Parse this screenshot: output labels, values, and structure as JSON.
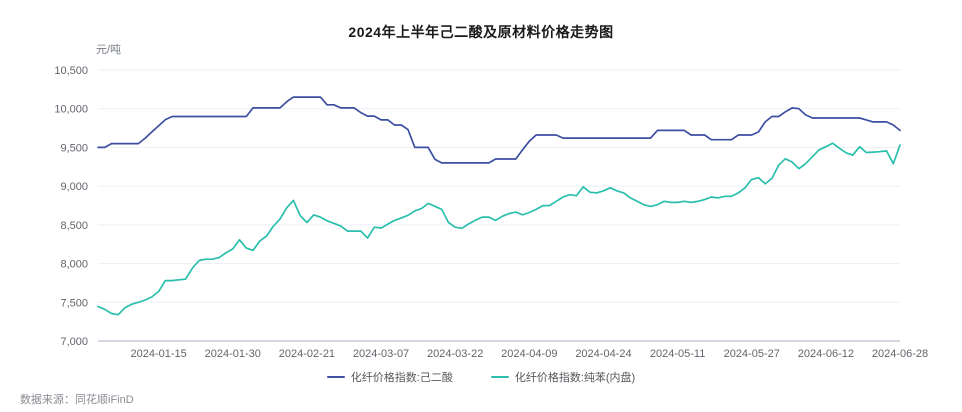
{
  "chart_data": {
    "type": "line",
    "title": "2024年上半年己二酸及原材料价格走势图",
    "ylabel": "元/吨",
    "ylim": [
      7000,
      10500
    ],
    "grid": true,
    "legend_position": "bottom",
    "y_ticks": [
      {
        "value": 10500,
        "label": "10,500"
      },
      {
        "value": 10000,
        "label": "10,000"
      },
      {
        "value": 9500,
        "label": "9,500"
      },
      {
        "value": 9000,
        "label": "9,000"
      },
      {
        "value": 8500,
        "label": "8,500"
      },
      {
        "value": 8000,
        "label": "8,000"
      },
      {
        "value": 7500,
        "label": "7,500"
      },
      {
        "value": 7000,
        "label": "7,000"
      }
    ],
    "x_tick_labels": [
      "2024-01-15",
      "2024-01-30",
      "2024-02-21",
      "2024-03-07",
      "2024-03-22",
      "2024-04-09",
      "2024-04-24",
      "2024-05-11",
      "2024-05-27",
      "2024-06-12",
      "2024-06-28"
    ],
    "x_tick_indices": [
      9,
      20,
      31,
      42,
      53,
      64,
      75,
      86,
      97,
      108,
      119
    ],
    "series": [
      {
        "name": "化纤价格指数:己二酸",
        "color": "#3D4FA1",
        "values": [
          9500,
          9500,
          9550,
          9550,
          9550,
          9550,
          9550,
          9620,
          9700,
          9780,
          9860,
          9900,
          9900,
          9900,
          9900,
          9900,
          9900,
          9900,
          9900,
          9900,
          9900,
          9900,
          9900,
          10010,
          10010,
          10010,
          10010,
          10010,
          10090,
          10150,
          10150,
          10150,
          10150,
          10150,
          10050,
          10050,
          10010,
          10010,
          10010,
          9950,
          9905,
          9905,
          9855,
          9855,
          9790,
          9790,
          9730,
          9500,
          9500,
          9500,
          9345,
          9300,
          9300,
          9300,
          9300,
          9300,
          9300,
          9300,
          9300,
          9350,
          9350,
          9350,
          9350,
          9470,
          9580,
          9660,
          9660,
          9660,
          9660,
          9620,
          9620,
          9620,
          9620,
          9620,
          9620,
          9620,
          9620,
          9620,
          9620,
          9620,
          9620,
          9620,
          9620,
          9720,
          9720,
          9720,
          9720,
          9720,
          9660,
          9660,
          9660,
          9600,
          9600,
          9600,
          9600,
          9660,
          9660,
          9660,
          9700,
          9830,
          9900,
          9900,
          9960,
          10010,
          10000,
          9920,
          9880,
          9880,
          9880,
          9880,
          9880,
          9880,
          9880,
          9880,
          9855,
          9830,
          9830,
          9830,
          9790,
          9720
        ]
      },
      {
        "name": "化纤价格指数:纯苯(内盘)",
        "color": "#2ABFAD",
        "values": [
          7445,
          7410,
          7355,
          7340,
          7430,
          7475,
          7500,
          7530,
          7570,
          7640,
          7780,
          7780,
          7790,
          7800,
          7940,
          8040,
          8057,
          8057,
          8080,
          8140,
          8190,
          8307,
          8200,
          8170,
          8290,
          8355,
          8480,
          8575,
          8720,
          8816,
          8618,
          8530,
          8628,
          8600,
          8553,
          8520,
          8487,
          8420,
          8420,
          8420,
          8330,
          8470,
          8460,
          8510,
          8557,
          8590,
          8623,
          8680,
          8711,
          8777,
          8740,
          8700,
          8530,
          8470,
          8456,
          8513,
          8560,
          8600,
          8600,
          8557,
          8610,
          8645,
          8665,
          8630,
          8660,
          8700,
          8747,
          8750,
          8804,
          8860,
          8890,
          8877,
          8991,
          8920,
          8913,
          8940,
          8978,
          8940,
          8913,
          8848,
          8804,
          8760,
          8739,
          8760,
          8804,
          8790,
          8790,
          8804,
          8790,
          8804,
          8826,
          8860,
          8848,
          8869,
          8869,
          8913,
          8978,
          9087,
          9109,
          9030,
          9100,
          9270,
          9355,
          9310,
          9225,
          9290,
          9380,
          9470,
          9510,
          9555,
          9490,
          9430,
          9400,
          9510,
          9435,
          9440,
          9445,
          9455,
          9290,
          9530
        ]
      }
    ]
  },
  "source": "数据来源：同花顺iFinD",
  "colors": {
    "grid": "#EDEFF6",
    "axis": "#A9AEC5",
    "tick_text": "#63656C"
  }
}
